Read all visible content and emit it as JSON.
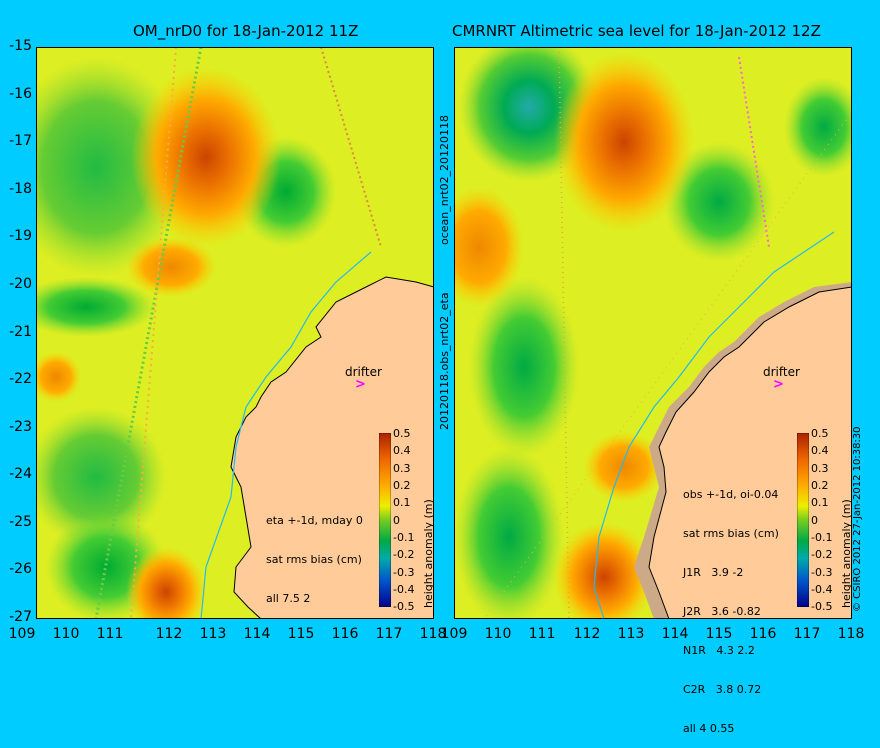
{
  "left_panel": {
    "title": "OM_nrD0 for 18-Jan-2012 11Z",
    "vertical_label": "ocean_nrt02_20120118",
    "stats": [
      "eta +-1d, mday 0",
      "sat rms bias (cm)",
      "all 7.5 2"
    ],
    "drifter_label": "drifter"
  },
  "right_panel": {
    "title": "CMRNRT Altimetric sea level  for 18-Jan-2012 12Z",
    "vertical_label": "20120118.obs_nrt02_eta",
    "stats": [
      "obs +-1d, oi-0.04",
      "sat rms bias (cm)",
      "J1R   3.9 -2",
      "J2R   3.6 -0.82",
      "N1R   4.3 2.2",
      "C2R   3.8 0.72",
      "all 4 0.55"
    ],
    "drifter_label": "drifter",
    "copyright": "© CSIRO 2012  27-Jan-2012 10:38:30"
  },
  "axes": {
    "y_ticks": [
      "-15",
      "-16",
      "-17",
      "-18",
      "-19",
      "-20",
      "-21",
      "-22",
      "-23",
      "-24",
      "-25",
      "-26",
      "-27"
    ],
    "x_ticks": [
      "109",
      "110",
      "111",
      "112",
      "113",
      "114",
      "115",
      "116",
      "117",
      "118"
    ],
    "lat_range": [
      -27,
      -15
    ],
    "lon_range": [
      109,
      118
    ]
  },
  "colorbar": {
    "title": "height anomaly (m)",
    "ticks": [
      "0.5",
      "0.4",
      "0.3",
      "0.2",
      "0.1",
      "0",
      "-0.1",
      "-0.2",
      "-0.3",
      "-0.4",
      "-0.5"
    ],
    "range": [
      -0.5,
      0.5
    ]
  },
  "colors": {
    "background": "#00ccff",
    "land": "#ffcc99",
    "land_shelf": "#ccaa88",
    "observation_track": "#ff44ff"
  },
  "map_features": {
    "left_highs_label": "positive anomaly eddy near 112E 17S",
    "right_highs_label": "positive anomaly eddy near 112.5E 17S"
  }
}
